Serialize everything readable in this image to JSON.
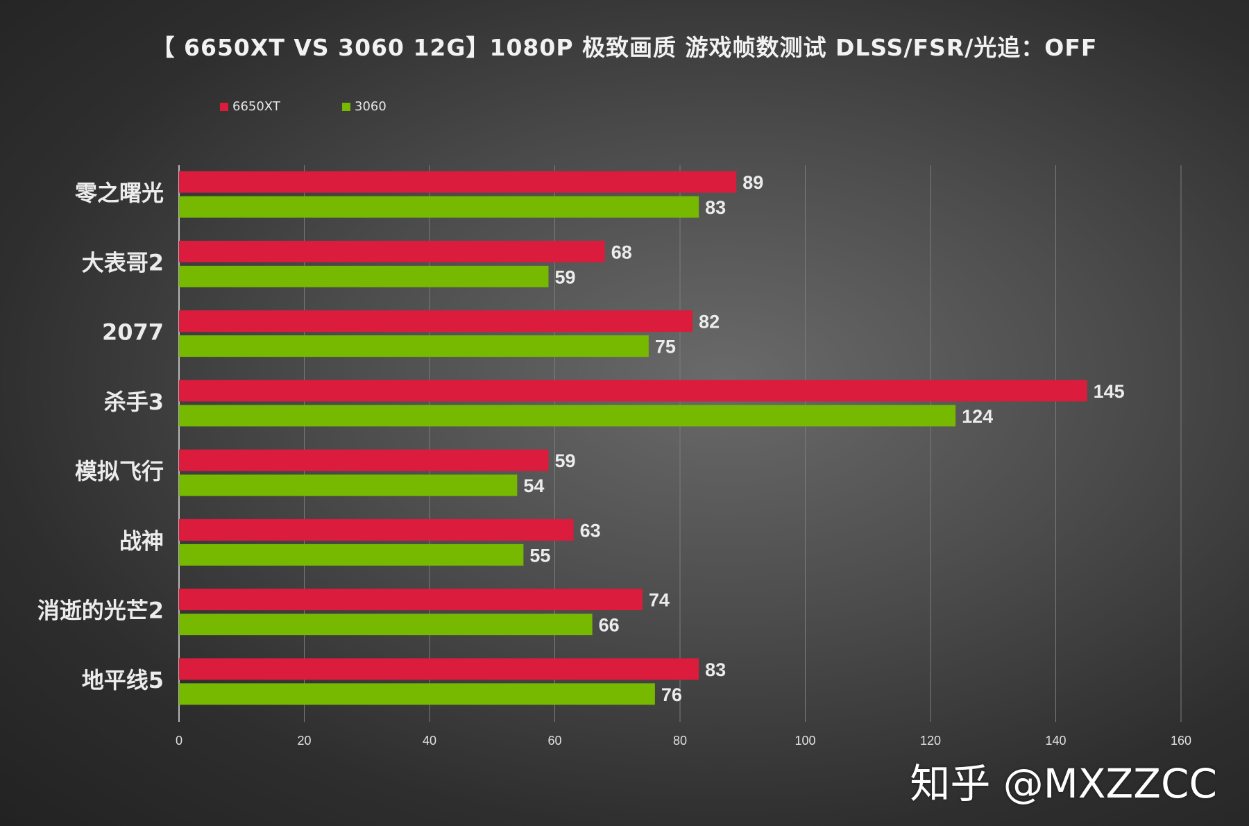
{
  "chart_data": {
    "type": "bar",
    "orientation": "horizontal",
    "title": "【 6650XT VS 3060 12G】1080P 极致画质 游戏帧数测试 DLSS/FSR/光追：OFF",
    "categories": [
      "零之曙光",
      "大表哥2",
      "2077",
      "杀手3",
      "模拟飞行",
      "战神",
      "消逝的光芒2",
      "地平线5"
    ],
    "series": [
      {
        "name": "6650XT",
        "color": "#dc1c3c",
        "values": [
          89,
          68,
          82,
          145,
          59,
          63,
          74,
          83
        ]
      },
      {
        "name": "3060",
        "color": "#76b900",
        "values": [
          83,
          59,
          75,
          124,
          54,
          55,
          66,
          76
        ]
      }
    ],
    "xlim": [
      0,
      160
    ],
    "xticks": [
      0,
      20,
      40,
      60,
      80,
      100,
      120,
      140,
      160
    ],
    "grid": true,
    "legend_position": "top-left",
    "data_labels": true
  },
  "watermark": "知乎 @MXZZCC"
}
